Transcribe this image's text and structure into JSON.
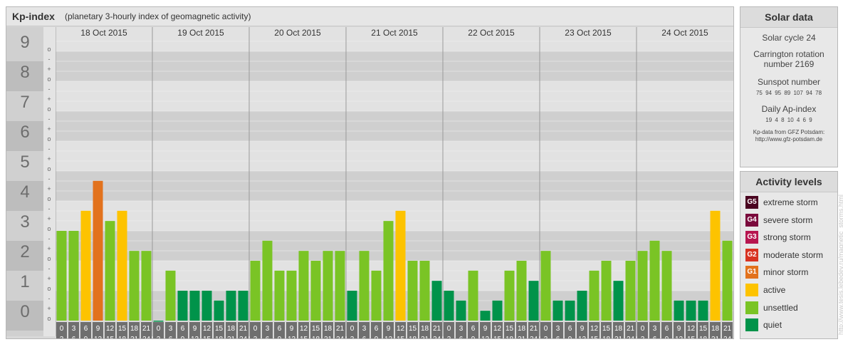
{
  "header": {
    "title": "Kp-index",
    "subtitle": "(planetary 3-hourly index of geomagnetic activity)"
  },
  "chart_data": {
    "type": "bar",
    "y_major_labels": [
      "0",
      "1",
      "2",
      "3",
      "4",
      "5",
      "6",
      "7",
      "8",
      "9"
    ],
    "y_minor_labels": [
      "-",
      "o",
      "+"
    ],
    "ylim": [
      0,
      9.33
    ],
    "days": [
      "18 Oct 2015",
      "19 Oct 2015",
      "20 Oct 2015",
      "21 Oct 2015",
      "22 Oct 2015",
      "23 Oct 2015",
      "24 Oct 2015"
    ],
    "interval_start": [
      "0",
      "3",
      "6",
      "9",
      "12",
      "15",
      "18",
      "21"
    ],
    "interval_end": [
      "3",
      "6",
      "9",
      "12",
      "15",
      "18",
      "21",
      "24"
    ],
    "values": [
      3.0,
      3.0,
      3.67,
      4.67,
      3.33,
      3.67,
      2.33,
      2.33,
      0.0,
      1.67,
      1.0,
      1.0,
      1.0,
      0.67,
      1.0,
      1.0,
      2.0,
      2.67,
      1.67,
      1.67,
      2.33,
      2.0,
      2.33,
      2.33,
      1.0,
      2.33,
      1.67,
      3.33,
      3.67,
      2.0,
      2.0,
      1.33,
      1.0,
      0.67,
      1.67,
      0.33,
      0.67,
      1.67,
      2.0,
      1.33,
      2.33,
      0.67,
      0.67,
      1.0,
      1.67,
      2.0,
      1.33,
      2.0,
      2.33,
      2.67,
      2.33,
      0.67,
      0.67,
      0.67,
      3.67,
      2.67
    ],
    "colors": {
      "quiet": "#00934a",
      "unsettled": "#7ac425",
      "active": "#fdc300",
      "minor_storm": "#e2721d",
      "moderate_storm": "#d83322",
      "strong_storm": "#b7164f",
      "severe_storm": "#7a0a3c",
      "extreme_storm": "#4a0420"
    }
  },
  "solar": {
    "title": "Solar data",
    "cycle": "Solar cycle 24",
    "carrington_line1": "Carrington rotation",
    "carrington_line2": "number 2169",
    "sunspot_title": "Sunspot number",
    "sunspot_values": "75 94 95 89 107 94 78",
    "ap_title": "Daily Ap-index",
    "ap_values": "19 4 8 10 4 6 9",
    "source_line1": "Kp-data from GFZ Potsdam:",
    "source_line2": "http://www.gfz-potsdam.de"
  },
  "levels": {
    "title": "Activity levels",
    "items": [
      {
        "badge": "G5",
        "label": "extreme storm",
        "color": "#4a0420"
      },
      {
        "badge": "G4",
        "label": "severe storm",
        "color": "#7a0a3c"
      },
      {
        "badge": "G3",
        "label": "strong storm",
        "color": "#b7164f"
      },
      {
        "badge": "G2",
        "label": "moderate storm",
        "color": "#d83322"
      },
      {
        "badge": "G1",
        "label": "minor storm",
        "color": "#e2721d"
      },
      {
        "badge": "",
        "label": "active",
        "color": "#fdc300"
      },
      {
        "badge": "",
        "label": "unsettled",
        "color": "#7ac425"
      },
      {
        "badge": "",
        "label": "quiet",
        "color": "#00934a"
      }
    ]
  },
  "watermark": "http://www.tesis.lebedev.ru/magnetic_storms.html"
}
